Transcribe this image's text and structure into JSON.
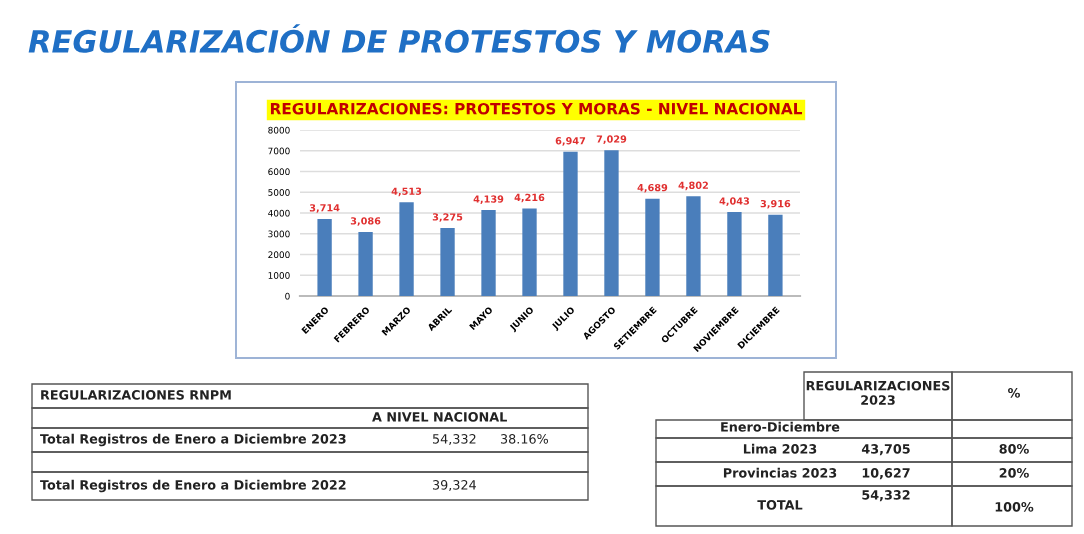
{
  "chart_data": {
    "type": "bar",
    "title": "REGULARIZACIÓN DE PROTESTOS Y MORAS",
    "subtitle": "REGULARIZACIONES: PROTESTOS Y MORAS - NIVEL NACIONAL",
    "categories": [
      "ENERO",
      "FEBRERO",
      "MARZO",
      "ABRIL",
      "MAYO",
      "JUNIO",
      "JULIO",
      "AGOSTO",
      "SETIEMBRE",
      "OCTUBRE",
      "NOVIEMBRE",
      "DICIEMBRE"
    ],
    "values": [
      3714,
      3086,
      4513,
      3275,
      4139,
      4216,
      6947,
      7029,
      4689,
      4802,
      4043,
      3916
    ],
    "value_labels": [
      "3,714",
      "3,086",
      "4,513",
      "3,275",
      "4,139",
      "4,216",
      "6,947",
      "7,029",
      "4,689",
      "4,802",
      "4,043",
      "3,916"
    ],
    "color": "#4a7ebb",
    "ylim": [
      0,
      8000
    ],
    "yticks": [
      0,
      1000,
      2000,
      3000,
      4000,
      5000,
      6000,
      7000,
      8000
    ],
    "grid": "y",
    "annotations": [
      "REGULARIZACIONES RNPM",
      "A NIVEL NACIONAL",
      "Total Registros de Enero a Diciembre 2023",
      "54,332",
      "38.16%",
      "Total Registros de Enero a Diciembre 2022",
      "39,324",
      "REGULARIZACIONES\n2023",
      "%",
      "Enero-Diciembre",
      "Lima 2023",
      "43,705",
      "80%",
      "Provincias 2023",
      "10,627",
      "20%",
      "TOTAL",
      "54,332",
      "100%"
    ]
  }
}
